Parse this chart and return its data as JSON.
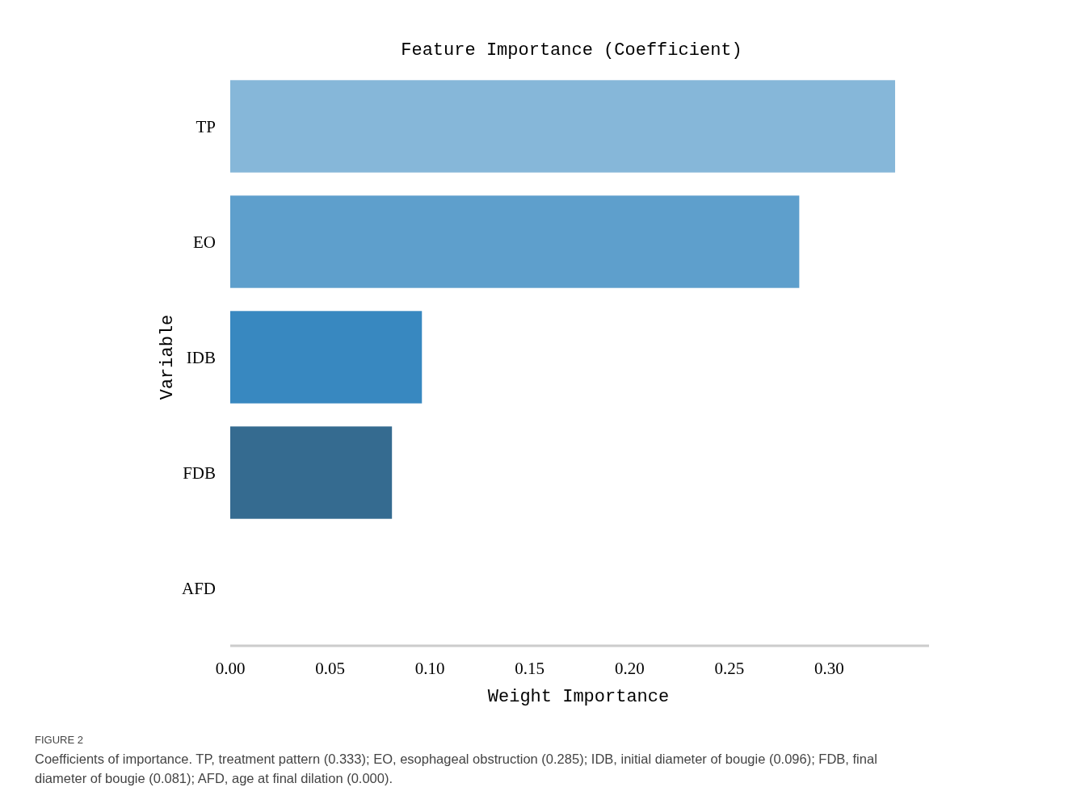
{
  "chart_data": {
    "type": "bar",
    "orientation": "horizontal",
    "title": "Feature Importance (Coefficient)",
    "xlabel": "Weight Importance",
    "ylabel": "Variable",
    "categories": [
      "TP",
      "EO",
      "IDB",
      "FDB",
      "AFD"
    ],
    "values": [
      0.333,
      0.285,
      0.096,
      0.081,
      0.0
    ],
    "colors": [
      "#86b7d9",
      "#5e9fcc",
      "#3888c0",
      "#356b90",
      "#45738f"
    ],
    "xlim": [
      0,
      0.35
    ],
    "xticks": [
      {
        "value": 0,
        "label": "0.00"
      },
      {
        "value": 0.05,
        "label": "0.05"
      },
      {
        "value": 0.1,
        "label": "0.10"
      },
      {
        "value": 0.15,
        "label": "0.15"
      },
      {
        "value": 0.2,
        "label": "0.20"
      },
      {
        "value": 0.25,
        "label": "0.25"
      },
      {
        "value": 0.3,
        "label": "0.30"
      }
    ],
    "annotations": [
      "FIGURE 2",
      "Coefficients of importance. TP, treatment pattern (0.333); EO, esophageal obstruction (0.285); IDB, initial diameter of bougie (0.096); FDB, final diameter of bougie (0.081); AFD, age at final dilation (0.000)."
    ]
  }
}
